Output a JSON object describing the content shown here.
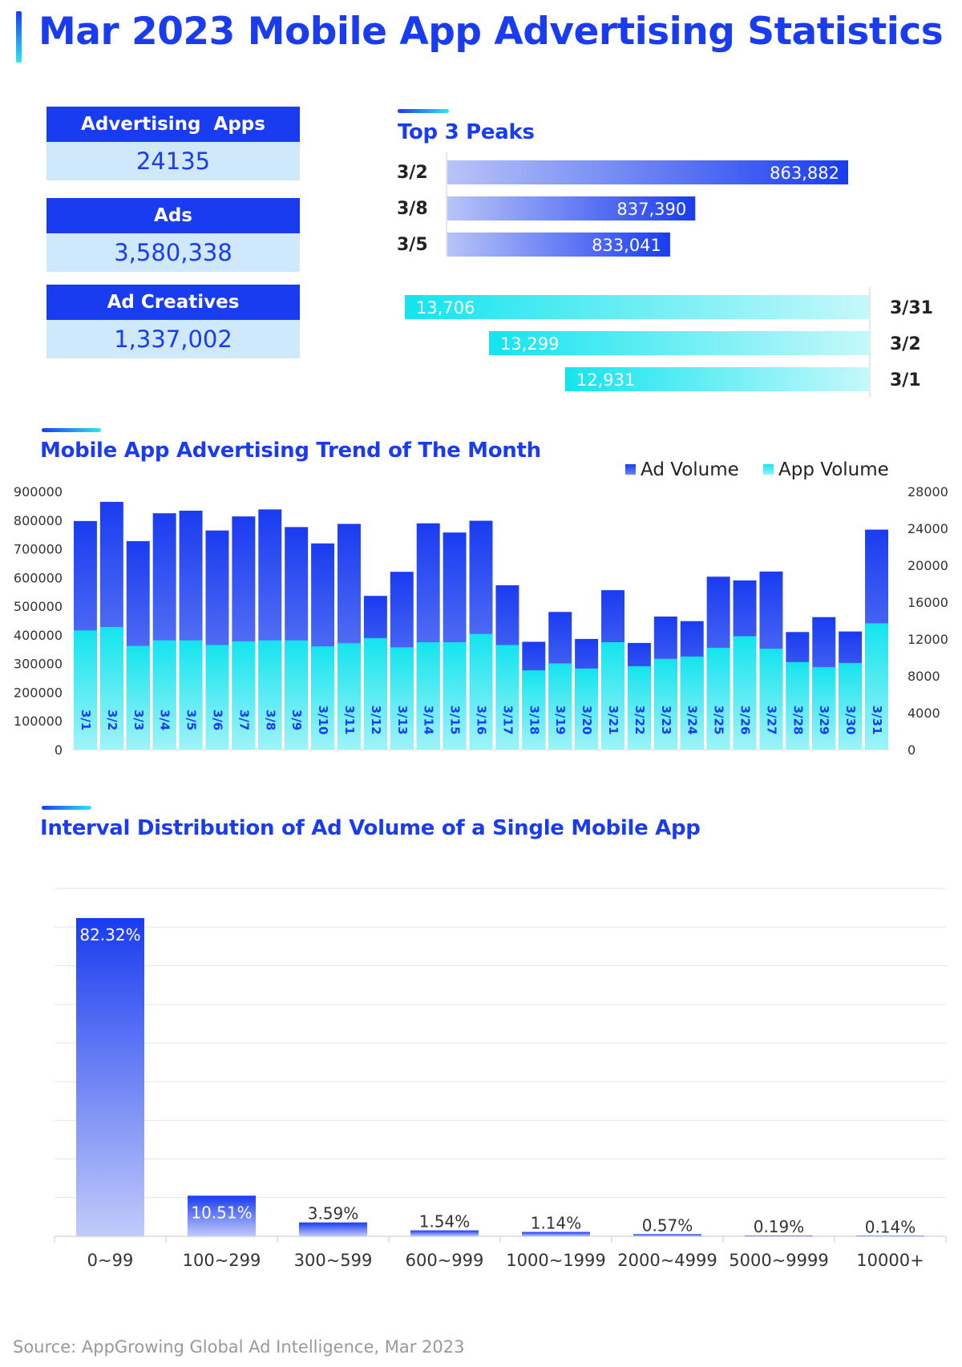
{
  "page": {
    "title": "Mar 2023 Mobile App Advertising Statistics",
    "source": "Source: AppGrowing Global Ad Intelligence, Mar 2023"
  },
  "stats": [
    {
      "label": "Advertising  Apps",
      "value": "24135"
    },
    {
      "label": "Ads",
      "value": "3,580,338"
    },
    {
      "label": "Ad Creatives",
      "value": "1,337,002"
    }
  ],
  "colors": {
    "ad_blue": "#1a3cf0",
    "app_cyan": "#2ee6f2",
    "value_bg": "#cfe8fc"
  },
  "chart_data": [
    {
      "type": "bar",
      "title": "Top 3 Peaks",
      "orientation": "horizontal",
      "series": [
        {
          "name": "",
          "color": "#1a3cf0",
          "categories": [
            "3/2",
            "3/8",
            "3/5"
          ],
          "values": [
            863882,
            837390,
            833041
          ],
          "labels": [
            "863,882",
            "837,390",
            "833,041"
          ]
        },
        {
          "name": "",
          "color": "#2ee6f2",
          "categories": [
            "3/31",
            "3/2",
            "3/1"
          ],
          "values": [
            13706,
            13299,
            12931
          ],
          "labels": [
            "13,706",
            "13,299",
            "12,931"
          ]
        }
      ]
    },
    {
      "type": "bar",
      "title": "Mobile App Advertising Trend of The Month",
      "xlabel": "",
      "ylabel": "",
      "categories": [
        "3/1",
        "3/2",
        "3/3",
        "3/4",
        "3/5",
        "3/6",
        "3/7",
        "3/8",
        "3/9",
        "3/10",
        "3/11",
        "3/12",
        "3/13",
        "3/14",
        "3/15",
        "3/16",
        "3/17",
        "3/18",
        "3/19",
        "3/20",
        "3/21",
        "3/22",
        "3/23",
        "3/24",
        "3/25",
        "3/26",
        "3/27",
        "3/28",
        "3/29",
        "3/30",
        "3/31"
      ],
      "series": [
        {
          "name": "Ad Volume",
          "axis": "left",
          "color": "#1a3cf0",
          "values": [
            797000,
            863882,
            727000,
            824000,
            833041,
            764000,
            813000,
            837390,
            776000,
            719000,
            787000,
            536000,
            620000,
            789000,
            757000,
            798000,
            573000,
            376000,
            480000,
            386000,
            556000,
            372000,
            464000,
            448000,
            603000,
            590000,
            621000,
            410000,
            462000,
            412000,
            767000
          ]
        },
        {
          "name": "App Volume",
          "axis": "right",
          "color": "#2ee6f2",
          "values": [
            12931,
            13299,
            11250,
            11850,
            11850,
            11350,
            11750,
            11850,
            11850,
            11200,
            11550,
            12100,
            11100,
            11650,
            11650,
            12550,
            11350,
            8600,
            9350,
            8800,
            11650,
            9050,
            9850,
            10100,
            11050,
            12300,
            10950,
            9500,
            8950,
            9400,
            13706
          ]
        }
      ],
      "ylim_left": [
        0,
        900000
      ],
      "yticks_left": [
        "0",
        "100000",
        "200000",
        "300000",
        "400000",
        "500000",
        "600000",
        "700000",
        "800000",
        "900000"
      ],
      "ylim_right": [
        0,
        28000
      ],
      "yticks_right": [
        "0",
        "4000",
        "8000",
        "12000",
        "16000",
        "20000",
        "24000",
        "28000"
      ],
      "legend": "top-right",
      "grid": false
    },
    {
      "type": "bar",
      "title": "Interval Distribution of Ad Volume of a Single Mobile App",
      "categories": [
        "0~99",
        "100~299",
        "300~599",
        "600~999",
        "1000~1999",
        "2000~4999",
        "5000~9999",
        "10000+"
      ],
      "values": [
        82.32,
        10.51,
        3.59,
        1.54,
        1.14,
        0.57,
        0.19,
        0.14
      ],
      "labels": [
        "82.32%",
        "10.51%",
        "3.59%",
        "1.54%",
        "1.14%",
        "0.57%",
        "0.19%",
        "0.14%"
      ],
      "ylim": [
        0,
        90
      ],
      "grid": true
    }
  ]
}
